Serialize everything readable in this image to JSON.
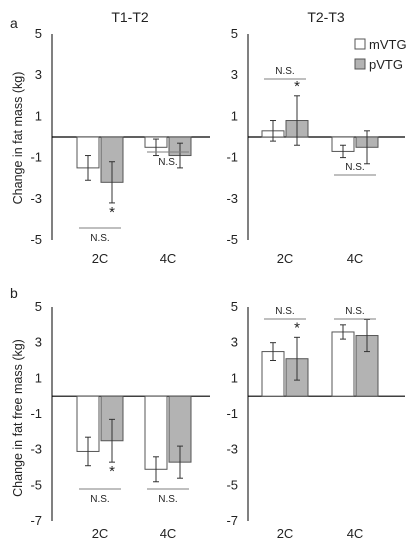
{
  "chart_data": [
    {
      "type": "bar",
      "panel_label": "a",
      "title": "T1-T2",
      "ylabel": "Change in fat mass (kg)",
      "ylim": [
        -5,
        5
      ],
      "yticks": [
        "5",
        "3",
        "1",
        "-1",
        "-3",
        "-5"
      ],
      "categories": [
        "2C",
        "4C"
      ],
      "series": [
        {
          "name": "mVTG",
          "values": [
            -1.5,
            -0.5
          ],
          "errors": [
            0.6,
            0.4
          ]
        },
        {
          "name": "pVTG",
          "values": [
            -2.2,
            -0.9
          ],
          "errors": [
            1.0,
            0.6
          ]
        }
      ],
      "annotations": [
        {
          "category": "2C",
          "series": "pVTG",
          "text": "*"
        },
        {
          "category": "2C",
          "text": "N.S."
        },
        {
          "category": "4C",
          "text": "N.S."
        }
      ]
    },
    {
      "type": "bar",
      "title": "T2-T3",
      "ylim": [
        -5,
        5
      ],
      "yticks": [
        "5",
        "3",
        "1",
        "-1",
        "-3",
        "-5"
      ],
      "categories": [
        "2C",
        "4C"
      ],
      "legend": {
        "placement": "top-right",
        "entries": [
          "mVTG",
          "pVTG"
        ]
      },
      "series": [
        {
          "name": "mVTG",
          "values": [
            0.3,
            -0.7
          ],
          "errors": [
            0.5,
            0.3
          ]
        },
        {
          "name": "pVTG",
          "values": [
            0.8,
            -0.5
          ],
          "errors": [
            1.2,
            0.8
          ]
        }
      ],
      "annotations": [
        {
          "category": "2C",
          "series": "pVTG",
          "text": "*"
        },
        {
          "category": "2C",
          "text": "N.S."
        },
        {
          "category": "4C",
          "text": "N.S."
        }
      ]
    },
    {
      "type": "bar",
      "panel_label": "b",
      "ylabel": "Change in fat free mass (kg)",
      "ylim": [
        -7,
        5
      ],
      "yticks": [
        "5",
        "3",
        "1",
        "-1",
        "-3",
        "-5",
        "-7"
      ],
      "categories": [
        "2C",
        "4C"
      ],
      "series": [
        {
          "name": "mVTG",
          "values": [
            -3.1,
            -4.1
          ],
          "errors": [
            0.8,
            0.7
          ]
        },
        {
          "name": "pVTG",
          "values": [
            -2.5,
            -3.7
          ],
          "errors": [
            1.2,
            0.9
          ]
        }
      ],
      "annotations": [
        {
          "category": "2C",
          "series": "pVTG",
          "text": "*"
        },
        {
          "category": "2C",
          "text": "N.S."
        },
        {
          "category": "4C",
          "text": "N.S."
        }
      ]
    },
    {
      "type": "bar",
      "ylim": [
        -7,
        5
      ],
      "yticks": [
        "5",
        "3",
        "1",
        "-1",
        "-3",
        "-5",
        "-7"
      ],
      "categories": [
        "2C",
        "4C"
      ],
      "series": [
        {
          "name": "mVTG",
          "values": [
            2.5,
            3.6
          ],
          "errors": [
            0.5,
            0.4
          ]
        },
        {
          "name": "pVTG",
          "values": [
            2.1,
            3.4
          ],
          "errors": [
            1.2,
            0.9
          ]
        }
      ],
      "annotations": [
        {
          "category": "2C",
          "series": "pVTG",
          "text": "*"
        },
        {
          "category": "2C",
          "text": "N.S."
        },
        {
          "category": "4C",
          "text": "N.S."
        }
      ]
    }
  ],
  "colors": {
    "mVTG_fill": "#ffffff",
    "pVTG_fill": "#b3b3b3",
    "bar_stroke": "#555555",
    "axis": "#000000",
    "text": "#222222",
    "bracket": "#7f7f7f"
  }
}
